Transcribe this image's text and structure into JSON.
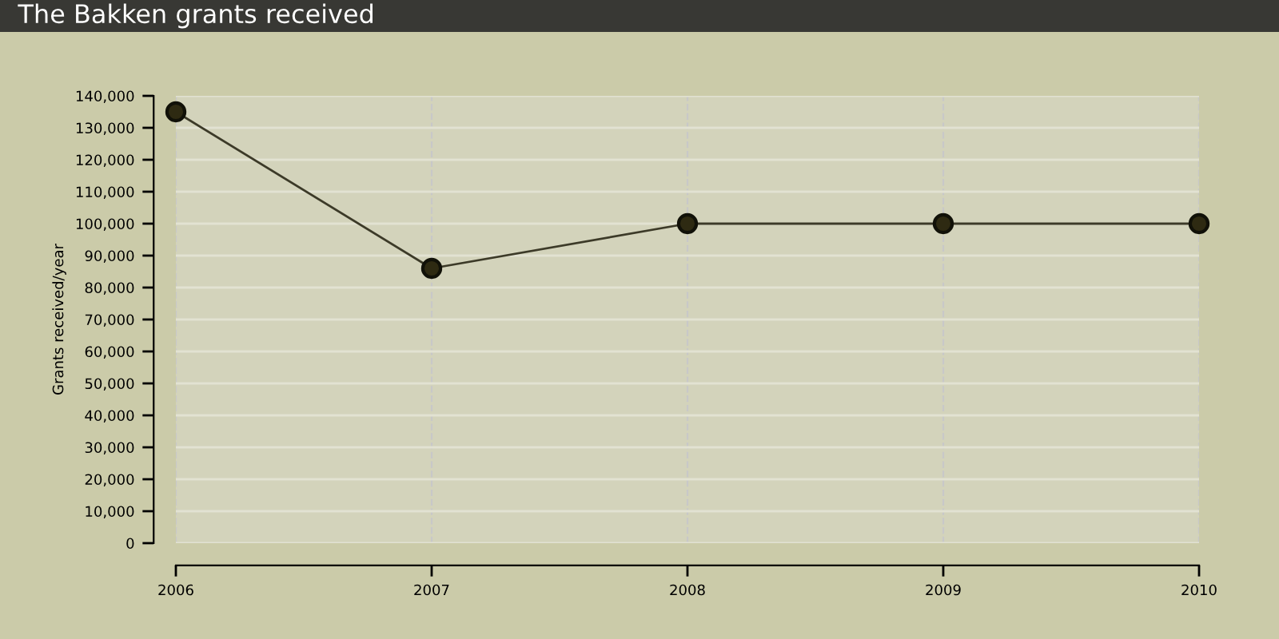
{
  "chart_data": {
    "type": "line",
    "title": "The Bakken grants received",
    "ylabel": "Grants received/year",
    "x": [
      2006,
      2007,
      2008,
      2009,
      2010
    ],
    "series": [
      {
        "color": "#3c3a28",
        "values": [
          135000,
          86000,
          100000,
          100000,
          100000
        ]
      }
    ],
    "xlim": [
      2006,
      2010
    ],
    "xticks": [
      2006,
      2007,
      2008,
      2009,
      2010
    ],
    "ylim": [
      0,
      140000
    ],
    "yticks": [
      0,
      {
        "value": 10000,
        "label": "10,000"
      },
      {
        "value": 20000,
        "label": "20,000"
      },
      {
        "value": 30000,
        "label": "30,000"
      },
      {
        "value": 40000,
        "label": "40,000"
      },
      {
        "value": 50000,
        "label": "50,000"
      },
      {
        "value": 60000,
        "label": "60,000"
      },
      {
        "value": 70000,
        "label": "70,000"
      },
      {
        "value": 80000,
        "label": "80,000"
      },
      {
        "value": 90000,
        "label": "90,000"
      },
      {
        "value": 100000,
        "label": "100,000"
      },
      {
        "value": 110000,
        "label": "110,000"
      },
      {
        "value": 120000,
        "label": "120,000"
      },
      {
        "value": 130000,
        "label": "130,000"
      },
      {
        "value": 140000,
        "label": "140,000"
      }
    ],
    "grid": true,
    "marker": "circle",
    "line_style": "solid"
  }
}
